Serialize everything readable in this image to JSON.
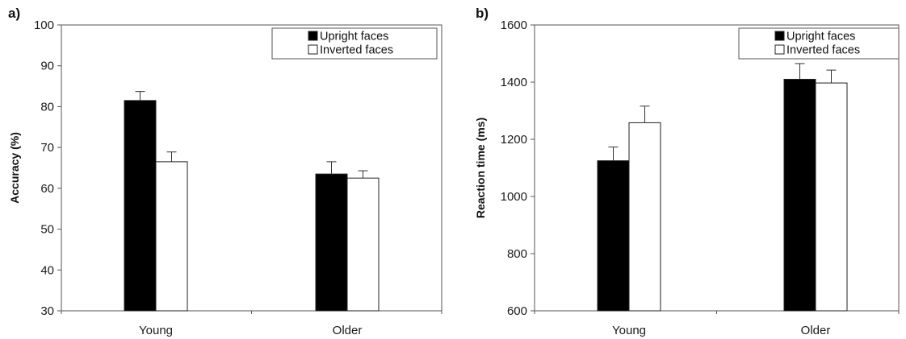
{
  "chart_data": [
    {
      "type": "bar",
      "panel_label": "a)",
      "ylabel": "Accuracy (%)",
      "xlabel": "",
      "ylim": [
        30,
        100
      ],
      "yticks": [
        30,
        40,
        50,
        60,
        70,
        80,
        90,
        100
      ],
      "categories": [
        "Young",
        "Older"
      ],
      "legend_position": "top-right",
      "series": [
        {
          "name": "Upright faces",
          "color": "#000000",
          "values": [
            81.5,
            63.5
          ],
          "errors": [
            2.2,
            3.0
          ]
        },
        {
          "name": "Inverted faces",
          "color": "#ffffff",
          "values": [
            66.5,
            62.5
          ],
          "errors": [
            2.4,
            1.8
          ]
        }
      ]
    },
    {
      "type": "bar",
      "panel_label": "b)",
      "ylabel": "Reaction time (ms)",
      "xlabel": "",
      "ylim": [
        600,
        1600
      ],
      "yticks": [
        600,
        800,
        1000,
        1200,
        1400,
        1600
      ],
      "categories": [
        "Young",
        "Older"
      ],
      "legend_position": "top-right",
      "series": [
        {
          "name": "Upright faces",
          "color": "#000000",
          "values": [
            1125,
            1410
          ],
          "errors": [
            48,
            55
          ]
        },
        {
          "name": "Inverted faces",
          "color": "#ffffff",
          "values": [
            1258,
            1397
          ],
          "errors": [
            58,
            45
          ]
        }
      ]
    }
  ]
}
